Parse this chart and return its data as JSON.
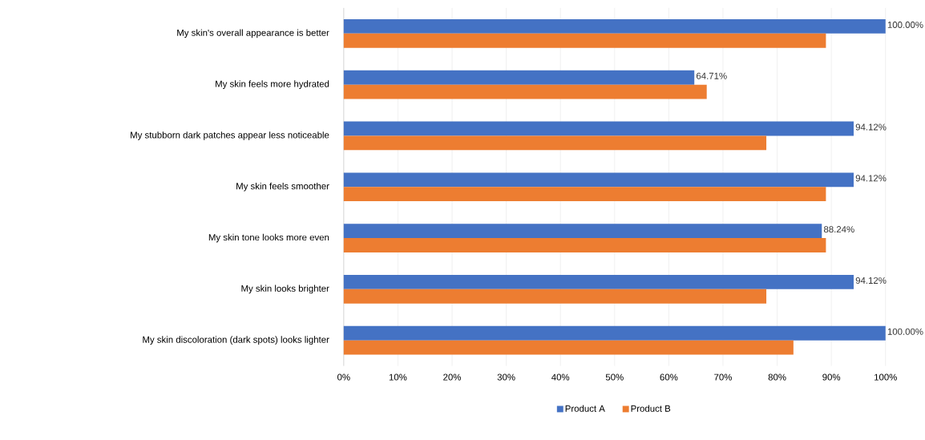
{
  "chart_data": {
    "type": "bar",
    "orientation": "horizontal",
    "categories": [
      "My skin's overall appearance is better",
      "My skin feels more hydrated",
      "My stubborn dark patches appear less noticeable",
      "My skin feels smoother",
      "My skin tone looks more even",
      "My skin looks brighter",
      "My skin discoloration (dark spots) looks lighter"
    ],
    "series": [
      {
        "name": "Product A",
        "color": "#4472c4",
        "values": [
          100,
          64.71,
          94.12,
          94.12,
          88.24,
          94.12,
          100
        ],
        "value_labels": [
          "100.00%",
          "64.71%",
          "94.12%",
          "94.12%",
          "88.24%",
          "94.12%",
          "100.00%"
        ]
      },
      {
        "name": "Product B",
        "color": "#ed7d31",
        "values": [
          89,
          67,
          78,
          89,
          89,
          78,
          83
        ]
      }
    ],
    "xlim": [
      0,
      100
    ],
    "xticks": [
      {
        "value": 0,
        "label": "0%"
      },
      {
        "value": 10,
        "label": "10%"
      },
      {
        "value": 20,
        "label": "20%"
      },
      {
        "value": 30,
        "label": "30%"
      },
      {
        "value": 40,
        "label": "40%"
      },
      {
        "value": 50,
        "label": "50%"
      },
      {
        "value": 60,
        "label": "60%"
      },
      {
        "value": 70,
        "label": "70%"
      },
      {
        "value": 80,
        "label": "80%"
      },
      {
        "value": 90,
        "label": "90%"
      },
      {
        "value": 100,
        "label": "100%"
      }
    ],
    "grid": "x",
    "legend": "bottom"
  }
}
